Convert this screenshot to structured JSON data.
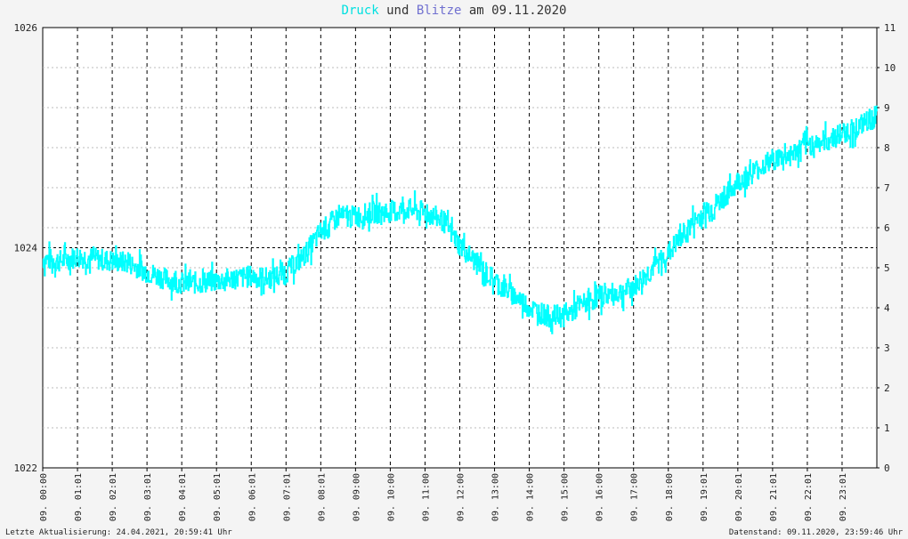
{
  "title": {
    "part1": "Druck",
    "part2": " und ",
    "part3": "Blitze",
    "part4": " am 09.11.2020",
    "color1": "#00e0e0",
    "color3": "#7070d0"
  },
  "footer": {
    "left": "Letzte Aktualisierung: 24.04.2021, 20:59:41 Uhr",
    "right": "Datenstand: 09.11.2020, 23:59:46 Uhr"
  },
  "chart_data": {
    "type": "line",
    "title": "Druck und Blitze am 09.11.2020",
    "left_axis": {
      "ylim": [
        1022,
        1026
      ],
      "ticks": [
        "1022",
        "1024",
        "1026"
      ]
    },
    "right_axis": {
      "ylim": [
        0,
        11
      ],
      "ticks": [
        "0",
        "1",
        "2",
        "3",
        "4",
        "5",
        "6",
        "7",
        "8",
        "9",
        "10",
        "11"
      ]
    },
    "x_tick_labels": [
      "09. 00:00",
      "09. 01:01",
      "09. 02:01",
      "09. 03:01",
      "09. 04:01",
      "09. 05:01",
      "09. 06:01",
      "09. 07:01",
      "09. 08:01",
      "09. 09:00",
      "09. 10:00",
      "09. 11:00",
      "09. 12:00",
      "09. 13:00",
      "09. 14:00",
      "09. 15:00",
      "09. 16:00",
      "09. 17:00",
      "09. 18:00",
      "09. 19:01",
      "09. 20:01",
      "09. 21:01",
      "09. 22:01",
      "09. 23:01"
    ],
    "grid": true,
    "series": [
      {
        "name": "Druck",
        "color": "#00ffff",
        "axis": "left",
        "x_hours": [
          0,
          0.5,
          1,
          1.5,
          2,
          2.5,
          3,
          3.5,
          4,
          4.5,
          5,
          5.5,
          6,
          6.5,
          7,
          7.5,
          8,
          8.5,
          9,
          9.5,
          10,
          10.5,
          11,
          11.5,
          12,
          12.5,
          13,
          13.5,
          14,
          14.5,
          15,
          15.5,
          16,
          16.5,
          17,
          17.5,
          18,
          18.5,
          19,
          19.5,
          20,
          20.5,
          21,
          21.5,
          22,
          22.5,
          23,
          23.5,
          24
        ],
        "values": [
          1023.9,
          1023.88,
          1023.92,
          1023.9,
          1023.88,
          1023.86,
          1023.78,
          1023.72,
          1023.68,
          1023.68,
          1023.7,
          1023.72,
          1023.74,
          1023.72,
          1023.78,
          1023.92,
          1024.15,
          1024.28,
          1024.28,
          1024.32,
          1024.33,
          1024.35,
          1024.32,
          1024.25,
          1024.02,
          1023.85,
          1023.7,
          1023.58,
          1023.46,
          1023.38,
          1023.38,
          1023.48,
          1023.56,
          1023.58,
          1023.64,
          1023.8,
          1023.95,
          1024.15,
          1024.32,
          1024.42,
          1024.6,
          1024.7,
          1024.8,
          1024.84,
          1024.93,
          1024.97,
          1025.04,
          1025.1,
          1025.2
        ],
        "noise": 0.1
      },
      {
        "name": "Blitze",
        "color": "#7070d0",
        "axis": "right",
        "values": []
      }
    ]
  }
}
